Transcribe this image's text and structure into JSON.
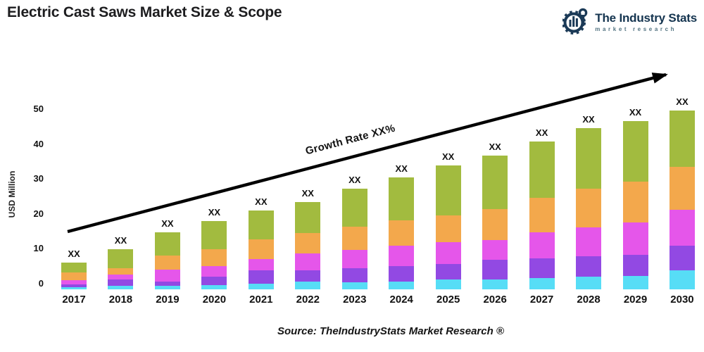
{
  "header": {
    "title": "Electric Cast Saws Market Size & Scope",
    "logo": {
      "name": "The Industry Stats",
      "tagline": "market research",
      "brand_color": "#14344f",
      "tagline_color": "#537482"
    }
  },
  "chart_data": {
    "type": "bar",
    "stacked": true,
    "title": "Electric Cast Saws Market Size & Scope",
    "xlabel": "",
    "ylabel": "USD Million",
    "ylim": [
      0,
      50
    ],
    "yticks": [
      0,
      10,
      20,
      30,
      40,
      50
    ],
    "grid": false,
    "legend_position": "none",
    "bar_value_label": "XX",
    "categories": [
      "2017",
      "2018",
      "2019",
      "2020",
      "2021",
      "2022",
      "2023",
      "2024",
      "2025",
      "2026",
      "2027",
      "2028",
      "2029",
      "2030"
    ],
    "series": [
      {
        "name": "segment-cyan",
        "color": "#57ddf6",
        "values": [
          0.6,
          1.1,
          1.1,
          1.3,
          1.7,
          2.2,
          2.0,
          2.2,
          2.8,
          2.8,
          3.2,
          3.6,
          3.8,
          5.4
        ]
      },
      {
        "name": "segment-purple",
        "color": "#9249e3",
        "values": [
          0.9,
          1.8,
          1.2,
          2.4,
          3.8,
          3.2,
          4.0,
          4.4,
          4.4,
          5.6,
          5.6,
          5.8,
          6.0,
          7.1
        ]
      },
      {
        "name": "segment-magenta",
        "color": "#e556ea",
        "values": [
          1.2,
          1.4,
          3.4,
          3.0,
          3.2,
          4.8,
          5.2,
          5.8,
          6.3,
          5.8,
          7.5,
          8.3,
          9.3,
          10.3
        ]
      },
      {
        "name": "segment-orange",
        "color": "#f3a84c",
        "values": [
          2.2,
          1.8,
          4.0,
          4.8,
          5.6,
          6.0,
          6.7,
          7.3,
          7.7,
          8.7,
          9.9,
          11.1,
          11.7,
          12.3
        ]
      },
      {
        "name": "segment-green",
        "color": "#a2bb3f",
        "values": [
          2.8,
          5.4,
          6.7,
          8.1,
          8.3,
          8.9,
          10.9,
          12.3,
          14.3,
          15.5,
          16.1,
          17.3,
          17.3,
          16.1
        ]
      }
    ],
    "totals_estimated": [
      7.7,
      11.5,
      16.4,
      19.6,
      22.6,
      25.1,
      28.8,
      32.0,
      35.5,
      38.4,
      42.3,
      46.1,
      48.1,
      51.2
    ],
    "annotations": {
      "growth_label": "Growth Rate XX%",
      "arrow_color": "#000000"
    }
  },
  "footer": {
    "source": "Source: TheIndustryStats Market Research ®"
  }
}
